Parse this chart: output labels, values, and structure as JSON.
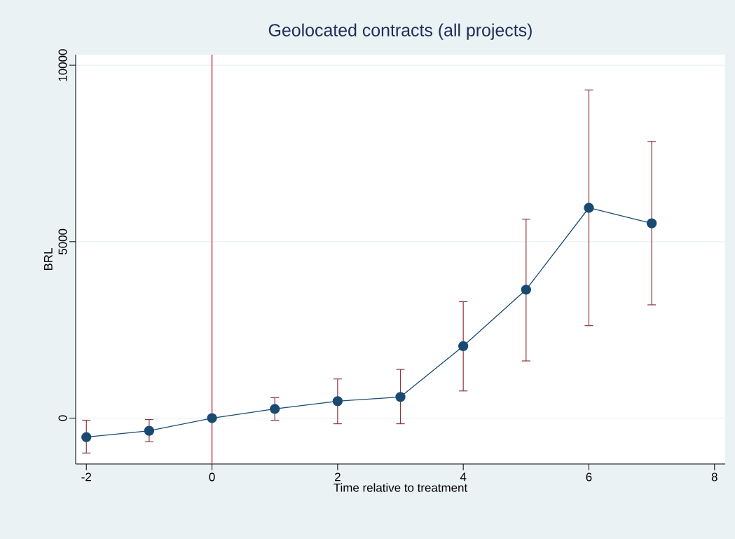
{
  "chart_data": {
    "type": "line",
    "title": "Geolocated contracts (all projects)",
    "xlabel": "Time relative to treatment",
    "ylabel": "BRL",
    "x": [
      -2,
      -1,
      0,
      1,
      2,
      3,
      4,
      5,
      6,
      7
    ],
    "series": [
      {
        "color": "#1a4a72",
        "values": [
          -540,
          -360,
          0,
          260,
          480,
          600,
          2040,
          3640,
          5960,
          5520
        ],
        "errors": [
          [
            -990,
            -60
          ],
          [
            -670,
            -40
          ],
          null,
          [
            -60,
            580
          ],
          [
            -160,
            1110
          ],
          [
            -160,
            1380
          ],
          [
            770,
            3300
          ],
          [
            1620,
            5640
          ],
          [
            2620,
            9300
          ],
          [
            3210,
            7840
          ]
        ]
      }
    ],
    "xlim": [
      -2.17,
      8.17
    ],
    "ylim": [
      -1300,
      10300
    ],
    "xticks": [
      -2,
      0,
      2,
      4,
      6,
      8
    ],
    "yticks": [
      0,
      5000,
      10000
    ],
    "ref_lines": [
      {
        "axis": "x",
        "value": 0,
        "color": "#c8102e"
      }
    ],
    "grid": "y",
    "marker": "circle",
    "line_style": "solid"
  }
}
